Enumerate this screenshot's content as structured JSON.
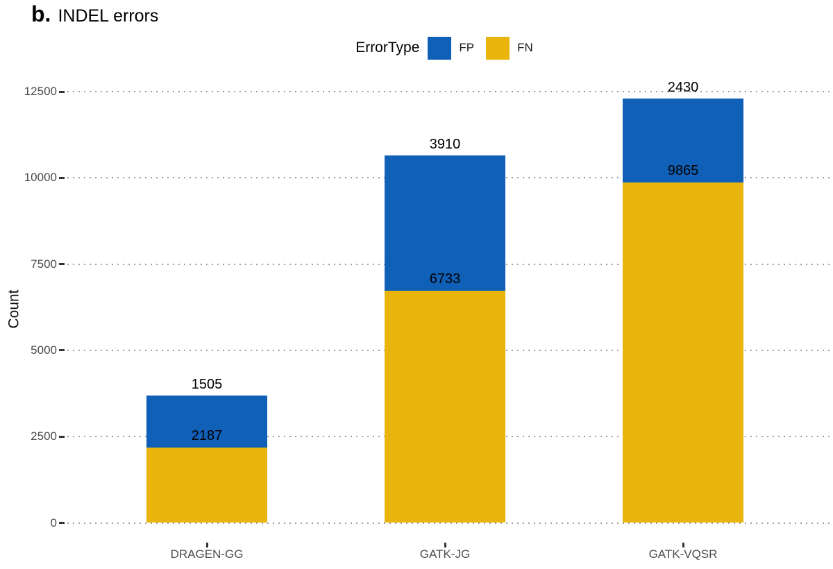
{
  "title": {
    "prefix": "b.",
    "text": "INDEL errors"
  },
  "legend": {
    "title": "ErrorType",
    "entries": [
      {
        "label": "FP",
        "color": "#1060B8"
      },
      {
        "label": "FN",
        "color": "#E9B40C"
      }
    ]
  },
  "chart_data": {
    "type": "bar",
    "stacked": true,
    "title": "b. INDEL errors",
    "categories": [
      "DRAGEN-GG",
      "GATK-JG",
      "GATK-VQSR"
    ],
    "series": [
      {
        "name": "FP",
        "color": "#1060B8",
        "values": [
          1505,
          3910,
          2430
        ]
      },
      {
        "name": "FN",
        "color": "#E9B40C",
        "values": [
          2187,
          6733,
          9865
        ]
      }
    ],
    "stack_order_bottom_to_top": [
      "FN",
      "FP"
    ],
    "bar_value_labels": {
      "FP_above_bar": [
        1505,
        3910,
        2430
      ],
      "FN_at_segment_top": [
        2187,
        6733,
        9865
      ]
    },
    "totals": [
      3692,
      10643,
      12295
    ],
    "xlabel": "",
    "ylabel": "Count",
    "yticks": [
      0,
      2500,
      5000,
      7500,
      10000,
      12500
    ],
    "ylim": [
      0,
      12500
    ],
    "grid": "horizontal-dotted",
    "gridline_color": "#9C9C9C",
    "legend_position": "top-center",
    "background": "#FFFFFF"
  }
}
